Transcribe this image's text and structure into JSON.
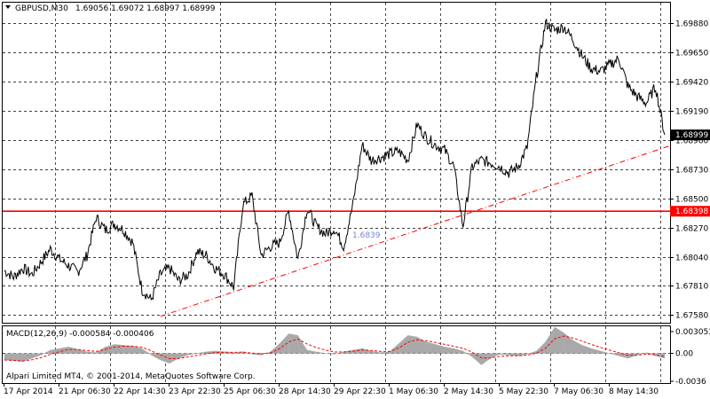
{
  "header": {
    "symbol_timeframe": "GBPUSD,M30",
    "quote": "1.69056 1.69072 1.68997 1.68999"
  },
  "indicator": {
    "label": "MACD(12,26,9) -0.000584 -0.000406",
    "ticks": [
      "0.003053",
      "0.00",
      "-0.0036"
    ]
  },
  "copyright": "Alpari Limited MT4, © 2001-2014, MetaQuotes Software Corp.",
  "price_labels": {
    "current": "1.68999",
    "hline": "1.68398"
  },
  "object_label": "1.6839",
  "colors": {
    "background": "#ffffff",
    "price_line": "#000000",
    "grid": "#000000",
    "hline": "#ff0000",
    "trendline": "#ff0000",
    "histogram": "#a9a9a9",
    "signal": "#ff0000",
    "current_tag_bg": "#000000",
    "current_tag_fg": "#ffffff",
    "hline_tag_bg": "#ff0000",
    "hline_tag_fg": "#ffffff"
  },
  "chart_data": [
    {
      "type": "line",
      "title": "GBPUSD,M30",
      "x_tick_labels": [
        "17 Apr 2014",
        "21 Apr 06:30",
        "22 Apr 14:30",
        "23 Apr 22:30",
        "25 Apr 06:30",
        "28 Apr 14:30",
        "29 Apr 22:30",
        "1 May 06:30",
        "2 May 14:30",
        "5 May 22:30",
        "7 May 06:30",
        "8 May 14:30"
      ],
      "y_tick_labels": [
        "1.69880",
        "1.69650",
        "1.69420",
        "1.69190",
        "1.68960",
        "1.68730",
        "1.68500",
        "1.68270",
        "1.68040",
        "1.67810",
        "1.67580"
      ],
      "ylim": [
        1.6752,
        1.7004
      ],
      "grid": true,
      "price_path": [
        [
          "17 Apr 2014",
          1.6793
        ],
        [
          "17 Apr 2014 +",
          1.6788
        ],
        [
          "18 Apr",
          1.6795
        ],
        [
          "19 Apr",
          1.679
        ],
        [
          "20 Apr",
          1.68
        ],
        [
          "20 Apr +",
          1.681
        ],
        [
          "21 Apr 06:30",
          1.6802
        ],
        [
          "21 Apr 10:30",
          1.6797
        ],
        [
          "21 Apr 14:30",
          1.6792
        ],
        [
          "22 Apr 06:30",
          1.6805
        ],
        [
          "22 Apr 10:30",
          1.6835
        ],
        [
          "22 Apr 14:30",
          1.6825
        ],
        [
          "23 Apr 02:30",
          1.683
        ],
        [
          "23 Apr 06:30",
          1.6825
        ],
        [
          "23 Apr 10:30",
          1.6815
        ],
        [
          "23 Apr 14:30",
          1.6778
        ],
        [
          "23 Apr 18:30",
          1.677
        ],
        [
          "23 Apr 22:30",
          1.679
        ],
        [
          "24 Apr 06:30",
          1.6795
        ],
        [
          "24 Apr 14:30",
          1.6785
        ],
        [
          "24 Apr 22:30",
          1.679
        ],
        [
          "25 Apr 06:30",
          1.6808
        ],
        [
          "25 Apr 10:30",
          1.6805
        ],
        [
          "25 Apr 14:30",
          1.6795
        ],
        [
          "25 Apr 18:30",
          1.679
        ],
        [
          "25 Apr 22:30",
          1.678
        ],
        [
          "26 Apr",
          1.6845
        ],
        [
          "27 Apr",
          1.6852
        ],
        [
          "27 Apr +",
          1.6805
        ],
        [
          "28 Apr 06:30",
          1.6812
        ],
        [
          "28 Apr 10:30",
          1.6815
        ],
        [
          "28 Apr 14:30",
          1.684
        ],
        [
          "28 Apr 18:30",
          1.6802
        ],
        [
          "29 Apr 06:30",
          1.6842
        ],
        [
          "29 Apr 10:30",
          1.6828
        ],
        [
          "29 Apr 14:30",
          1.6822
        ],
        [
          "29 Apr 18:30",
          1.6826
        ],
        [
          "29 Apr 22:30",
          1.6812
        ],
        [
          "30 Apr 06:30",
          1.6845
        ],
        [
          "30 Apr 10:30",
          1.6892
        ],
        [
          "30 Apr 14:30",
          1.688
        ],
        [
          "30 Apr 18:30",
          1.6882
        ],
        [
          "30 Apr 22:30",
          1.6885
        ],
        [
          "1 May 02:30",
          1.6887
        ],
        [
          "1 May 06:30",
          1.688
        ],
        [
          "1 May 10:30",
          1.6908
        ],
        [
          "1 May 14:30",
          1.6898
        ],
        [
          "1 May 18:30",
          1.6892
        ],
        [
          "1 May 22:30",
          1.6888
        ],
        [
          "2 May 06:30",
          1.6875
        ],
        [
          "2 May 10:30",
          1.6828
        ],
        [
          "2 May 14:30",
          1.6875
        ],
        [
          "2 May 18:30",
          1.688
        ],
        [
          "3 May",
          1.6878
        ],
        [
          "4 May",
          1.6875
        ],
        [
          "4 May +",
          1.687
        ],
        [
          "5 May 06:30",
          1.6875
        ],
        [
          "5 May 14:30",
          1.689
        ],
        [
          "5 May 18:30",
          1.6945
        ],
        [
          "5 May 22:30",
          1.6988
        ],
        [
          "6 May 06:30",
          1.6982
        ],
        [
          "6 May 14:30",
          1.6985
        ],
        [
          "6 May 22:30",
          1.6975
        ],
        [
          "7 May 06:30",
          1.6962
        ],
        [
          "7 May 10:30",
          1.6952
        ],
        [
          "7 May 14:30",
          1.695
        ],
        [
          "7 May 18:30",
          1.6955
        ],
        [
          "7 May 22:30",
          1.696
        ],
        [
          "8 May 06:30",
          1.6938
        ],
        [
          "8 May 10:30",
          1.693
        ],
        [
          "8 May 14:30",
          1.6925
        ],
        [
          "8 May 18:30",
          1.6938
        ],
        [
          "8 May 22:30",
          1.68999
        ]
      ],
      "horizontal_line": 1.68398,
      "trendline": {
        "from": [
          "23 Apr 22:30",
          1.6757
        ],
        "to": [
          "8 May 22:30",
          1.689
        ]
      }
    },
    {
      "type": "bar",
      "title": "MACD(12,26,9)",
      "y_tick_labels": [
        "0.003053",
        "0.00",
        "-0.0036"
      ],
      "ylim": [
        -0.0036,
        0.0033
      ],
      "histogram": [
        -0.0008,
        -0.0009,
        -0.001,
        -0.0006,
        -0.0002,
        0.0004,
        0.0006,
        0.0008,
        0.0005,
        0.0002,
        0.0001,
        0.0008,
        0.0011,
        0.001,
        0.0009,
        0.0006,
        -0.0002,
        -0.0008,
        -0.0012,
        -0.0006,
        -0.0002,
        0.0,
        0.0002,
        0.0003,
        0.0002,
        0.0001,
        0.0002,
        -0.0001,
        -0.0002,
        0.0002,
        0.0012,
        0.0024,
        0.0022,
        0.0004,
        0.0002,
        0.0,
        -0.0001,
        0.0002,
        0.0004,
        0.0006,
        0.0003,
        0.0001,
        0.0002,
        0.0012,
        0.0022,
        0.002,
        0.0014,
        0.0011,
        0.0008,
        0.0006,
        0.0003,
        -0.0004,
        -0.0014,
        -0.0006,
        -0.0001,
        -0.0002,
        -0.0003,
        -0.0001,
        0.0003,
        0.0014,
        0.0032,
        0.0025,
        0.0016,
        0.001,
        0.0006,
        0.0003,
        0.0,
        -0.0003,
        -0.0006,
        -0.0002,
        0.0001,
        -0.0003,
        -0.0006
      ]
    }
  ]
}
